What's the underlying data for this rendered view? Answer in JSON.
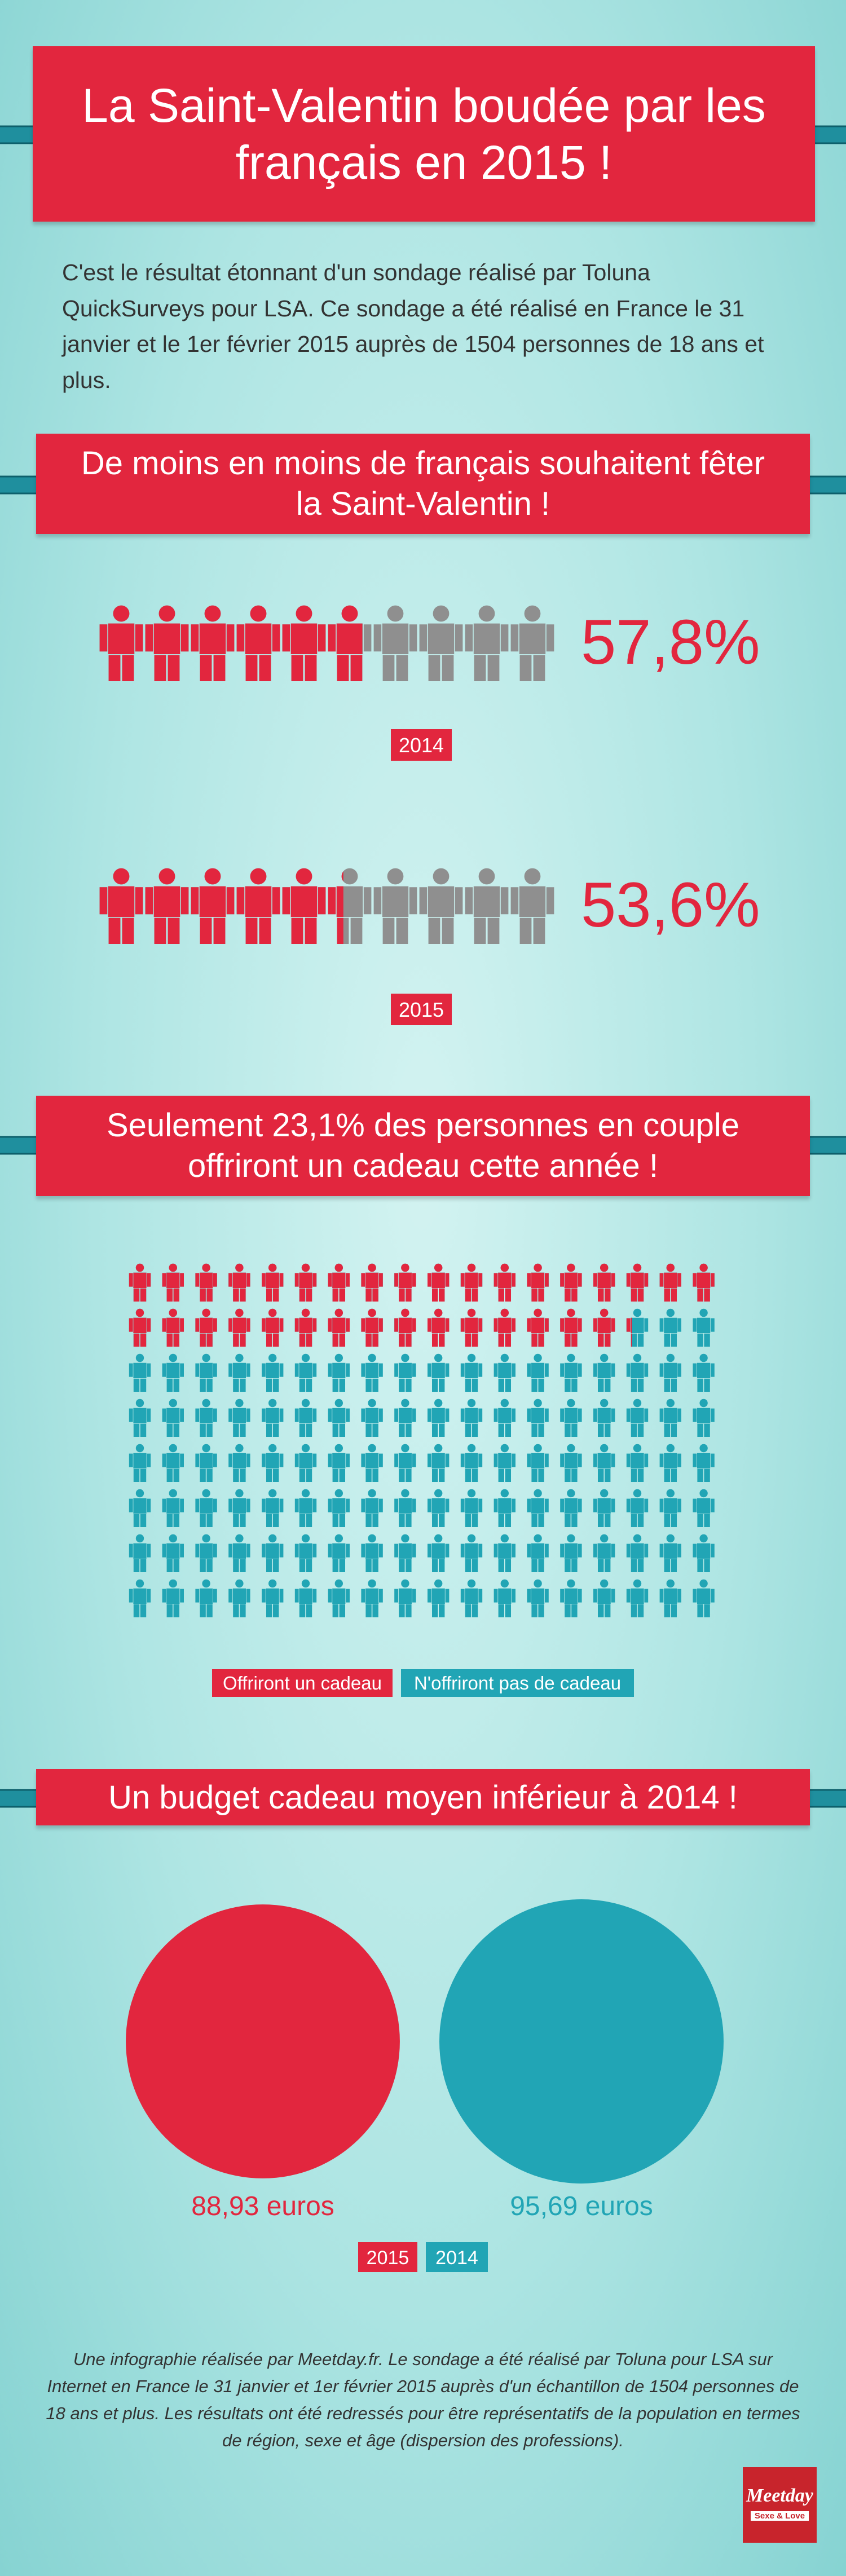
{
  "header": {
    "title": "La Saint-Valentin boudée par les français en 2015 !",
    "intro": "C'est le résultat étonnant d'un sondage réalisé par Toluna QuickSurveys pour LSA. Ce sondage a été réalisé en France le 31 janvier et le 1er février 2015 auprès de 1504 personnes de 18 ans et plus."
  },
  "section1": {
    "title": "De moins en moins de français souhaitent fêter la Saint-Valentin !",
    "rows": [
      {
        "year": "2014",
        "value": 57.8,
        "value_label": "57,8%"
      },
      {
        "year": "2015",
        "value": 53.6,
        "value_label": "53,6%"
      }
    ]
  },
  "section2": {
    "title": "Seulement 23,1% des personnes en couple offriront un cadeau cette année !",
    "value": 23.1,
    "legend": [
      {
        "name": "Offriront un cadeau",
        "color": "#e2263e"
      },
      {
        "name": "N'offriront pas de cadeau",
        "color": "#21a5b5"
      }
    ]
  },
  "section3": {
    "title": "Un budget cadeau moyen inférieur à 2014 !",
    "items": [
      {
        "year": "2015",
        "value": 88.93,
        "value_label": "88,93 euros",
        "color": "#e2263e"
      },
      {
        "year": "2014",
        "value": 95.69,
        "value_label": "95,69 euros",
        "color": "#21a5b5"
      }
    ]
  },
  "footer": {
    "text": "Une infographie réalisée par Meetday.fr. Le sondage a été réalisé par Toluna pour LSA sur Internet en France le 31 janvier et 1er février 2015  auprès d'un échantillon de 1504 personnes de 18 ans et plus. Les résultats ont été redressés pour être représentatifs de la population en termes de région, sexe et âge (dispersion des professions).",
    "logo": "Meetday",
    "logo_tagline": "Sexe & Love"
  }
}
